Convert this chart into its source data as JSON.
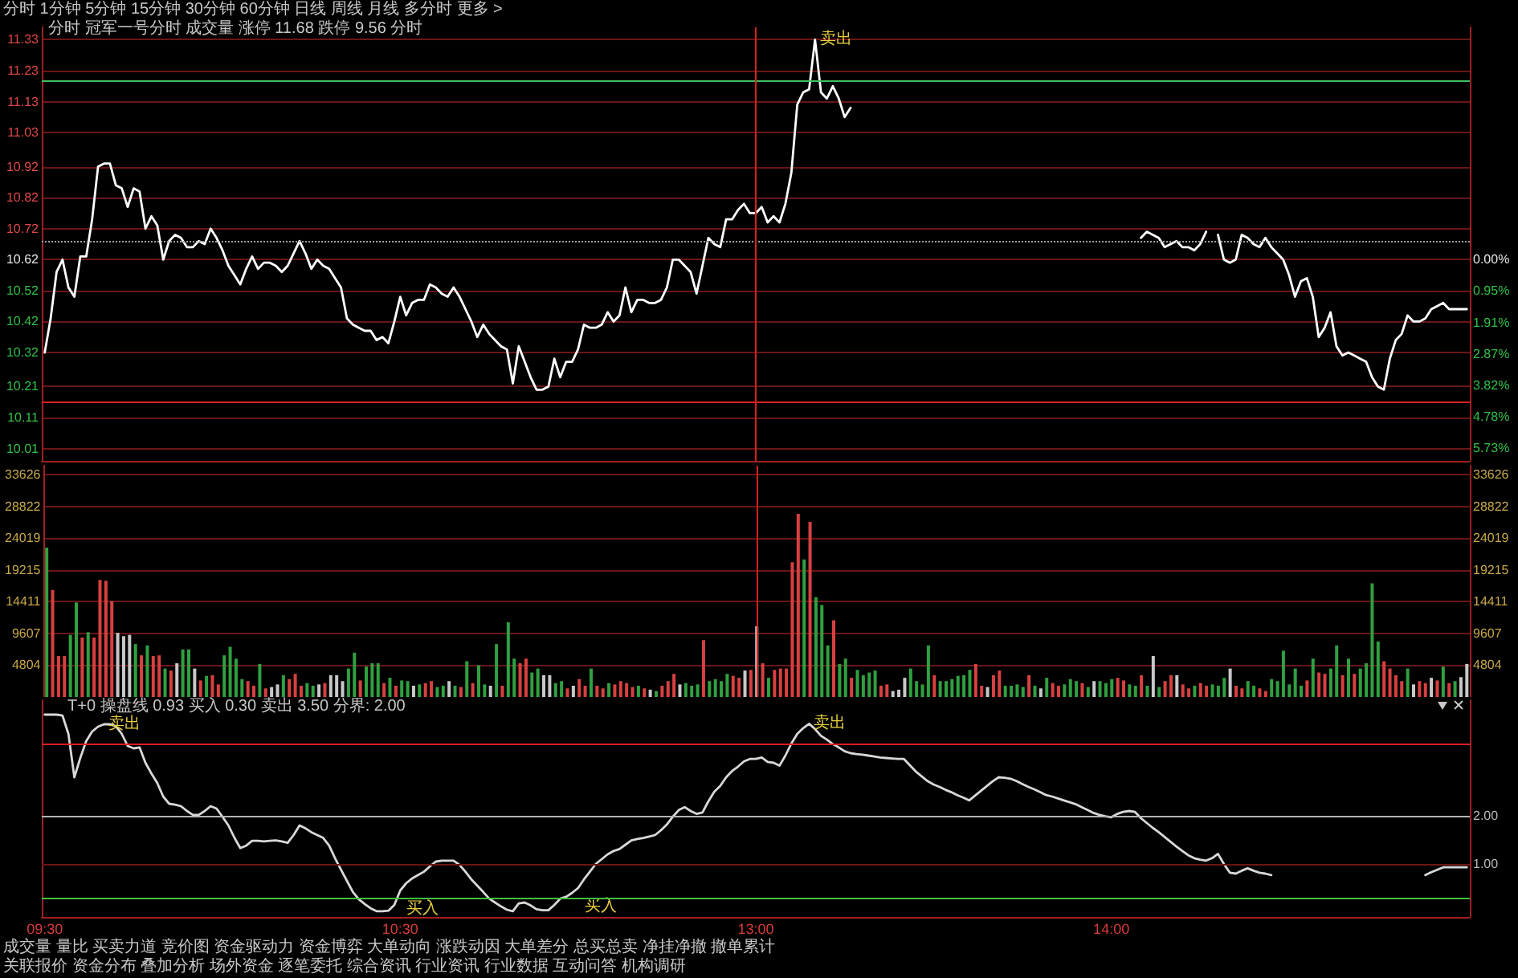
{
  "chart_data": [
    {
      "type": "line",
      "title": "分时 冠军一号分时 成交量 涨停 11.68 跌停 9.56 分时",
      "annotations": [
        "分时 1分钟 5分钟 15分钟 30分钟 60分钟 日线 周线 月线 多分时 更多 >"
      ],
      "categories": [
        "09:30",
        null,
        null,
        null,
        null,
        null,
        null,
        null,
        null,
        null,
        null,
        null,
        null,
        null,
        null,
        null,
        null,
        null,
        null,
        null,
        null,
        null,
        null,
        null,
        null,
        null,
        null,
        null,
        null,
        null,
        null,
        null,
        null,
        null,
        null,
        null,
        null,
        null,
        null,
        null,
        null,
        null,
        null,
        null,
        null,
        null,
        null,
        null,
        null,
        null,
        null,
        null,
        null,
        null,
        null,
        null,
        null,
        null,
        null,
        null,
        "10:30",
        null,
        null,
        null,
        null,
        null,
        null,
        null,
        null,
        null,
        null,
        null,
        null,
        null,
        null,
        null,
        null,
        null,
        null,
        null,
        null,
        null,
        null,
        null,
        null,
        null,
        null,
        null,
        null,
        null,
        null,
        null,
        null,
        null,
        null,
        null,
        null,
        null,
        null,
        null,
        null,
        null,
        null,
        null,
        null,
        null,
        null,
        null,
        null,
        null,
        null,
        null,
        null,
        null,
        null,
        null,
        null,
        null,
        null,
        null,
        "13:00",
        null,
        null,
        null,
        null,
        null,
        null,
        null,
        null,
        null,
        null,
        null,
        null,
        null,
        null,
        null,
        null,
        null,
        null,
        null,
        null,
        null,
        null,
        null,
        null,
        null,
        null,
        null,
        null,
        null,
        null,
        null,
        null,
        null,
        null,
        null,
        null,
        null,
        null,
        null,
        null,
        null,
        null,
        null,
        null,
        null,
        null,
        null,
        null,
        null,
        null,
        null,
        null,
        null,
        null,
        null,
        null,
        null,
        null,
        null,
        "14:00",
        null,
        null,
        null,
        null,
        null,
        null,
        null,
        null,
        null,
        null,
        null,
        null,
        null,
        null,
        null,
        null,
        null,
        null,
        null,
        null,
        null,
        null,
        null,
        null,
        null,
        null,
        null,
        null,
        null,
        null,
        null,
        null,
        null,
        null,
        null,
        null,
        null,
        null,
        null,
        null,
        null,
        null,
        null,
        null,
        null,
        null,
        null,
        null,
        null,
        null,
        null,
        null,
        null,
        null,
        null,
        null,
        null,
        null,
        null,
        null
      ],
      "series": [
        {
          "color": "#ffffff",
          "values": [
            10.32,
            10.43,
            10.58,
            10.62,
            10.53,
            10.5,
            10.63,
            10.63,
            10.75,
            10.92,
            10.93,
            10.93,
            10.86,
            10.85,
            10.79,
            10.85,
            10.84,
            10.72,
            10.76,
            10.73,
            10.62,
            10.68,
            10.7,
            10.69,
            10.66,
            10.66,
            10.68,
            10.67,
            10.72,
            10.69,
            10.65,
            10.6,
            10.57,
            10.54,
            10.59,
            10.63,
            10.59,
            10.61,
            10.61,
            10.6,
            10.58,
            10.6,
            10.64,
            10.68,
            10.64,
            10.59,
            10.62,
            10.6,
            10.59,
            10.56,
            10.53,
            10.43,
            10.41,
            10.4,
            10.39,
            10.39,
            10.36,
            10.37,
            10.35,
            10.42,
            10.5,
            10.44,
            10.48,
            10.49,
            10.49,
            10.54,
            10.53,
            10.51,
            10.5,
            10.53,
            10.5,
            10.46,
            10.42,
            10.37,
            10.41,
            10.38,
            10.36,
            10.34,
            10.33,
            10.22,
            10.34,
            10.29,
            10.24,
            10.2,
            10.2,
            10.21,
            10.3,
            10.24,
            10.29,
            10.29,
            10.33,
            10.41,
            10.4,
            10.4,
            10.41,
            10.45,
            10.42,
            10.44,
            10.53,
            10.45,
            10.49,
            10.49,
            10.48,
            10.48,
            10.49,
            10.53,
            10.62,
            10.62,
            10.6,
            10.58,
            10.51,
            10.6,
            10.69,
            10.67,
            10.66,
            10.75,
            10.75,
            10.78,
            10.8,
            10.77,
            10.77,
            10.79,
            10.74,
            10.76,
            10.74,
            10.8,
            10.9,
            11.12,
            11.16,
            11.17,
            11.33,
            11.16,
            11.14,
            11.18,
            11.14,
            11.08,
            11.11,
            null,
            null,
            null,
            null,
            null,
            null,
            null,
            null,
            null,
            null,
            null,
            null,
            null,
            null,
            null,
            null,
            null,
            null,
            null,
            null,
            null,
            null,
            null,
            null,
            null,
            null,
            null,
            null,
            null,
            null,
            null,
            null,
            null,
            null,
            null,
            null,
            null,
            null,
            null,
            null,
            null,
            null,
            null,
            null,
            null,
            null,
            null,
            null,
            10.69,
            10.71,
            10.7,
            10.69,
            10.66,
            10.67,
            10.68,
            10.66,
            10.66,
            10.65,
            10.67,
            10.71,
            null,
            10.7,
            10.62,
            10.61,
            10.62,
            10.7,
            10.69,
            10.67,
            10.66,
            10.69,
            10.66,
            10.64,
            10.62,
            10.57,
            10.5,
            10.55,
            10.56,
            10.5,
            10.37,
            10.4,
            10.45,
            10.34,
            10.31,
            10.32,
            10.31,
            10.3,
            10.29,
            10.24,
            10.21,
            10.2,
            10.3,
            10.36,
            10.38,
            10.44,
            10.42,
            10.42,
            10.43,
            10.46,
            10.47,
            10.48,
            10.46,
            10.46,
            10.46,
            10.46
          ],
          "value_labels": [
            null,
            null,
            null,
            null,
            null,
            null,
            null,
            null,
            null,
            null,
            null,
            null,
            null,
            null,
            null,
            null,
            null,
            null,
            null,
            null,
            null,
            null,
            null,
            null,
            null,
            null,
            null,
            null,
            null,
            null,
            null,
            null,
            null,
            null,
            null,
            null,
            null,
            null,
            null,
            null,
            null,
            null,
            null,
            null,
            null,
            null,
            null,
            null,
            null,
            null,
            null,
            null,
            null,
            null,
            null,
            null,
            null,
            null,
            null,
            null,
            null,
            null,
            null,
            null,
            null,
            null,
            null,
            null,
            null,
            null,
            null,
            null,
            null,
            null,
            null,
            null,
            null,
            null,
            null,
            null,
            null,
            null,
            null,
            null,
            null,
            null,
            null,
            null,
            null,
            null,
            null,
            null,
            null,
            null,
            null,
            null,
            null,
            null,
            null,
            null,
            null,
            null,
            null,
            null,
            null,
            null,
            null,
            null,
            null,
            null,
            null,
            null,
            null,
            null,
            null,
            null,
            null,
            null,
            null,
            null,
            null,
            null,
            null,
            null,
            null,
            null,
            null,
            null,
            null,
            null,
            "卖出",
            null,
            null,
            null,
            null,
            null,
            null,
            null,
            null,
            null,
            null,
            null,
            null,
            null,
            null,
            null,
            null,
            null,
            null,
            null,
            null,
            null,
            null,
            null,
            null,
            null,
            null,
            null,
            null,
            null,
            null,
            null,
            null,
            null,
            null,
            null,
            null,
            null,
            null,
            null,
            null,
            null,
            null,
            null,
            null,
            null,
            null,
            null,
            null,
            null,
            null,
            null,
            null,
            null,
            null,
            null,
            null,
            null,
            null,
            null,
            null,
            null,
            null,
            null,
            null,
            null,
            null,
            null,
            null,
            null,
            null,
            null,
            null,
            null,
            null,
            null,
            null,
            null,
            null,
            null,
            null,
            null,
            null,
            null,
            null,
            null,
            null,
            null,
            null,
            null,
            null,
            null,
            null,
            null,
            null,
            null,
            null,
            null,
            null,
            null,
            null,
            null,
            null,
            null,
            null,
            null,
            null,
            null,
            null,
            null,
            null
          ]
        }
      ],
      "ylim": [
        9.97,
        11.37
      ],
      "yticks": [
        10.01,
        10.11,
        10.21,
        10.32,
        10.42,
        10.52,
        10.62,
        10.72,
        10.82,
        10.92,
        11.03,
        11.13,
        11.23,
        11.33
      ],
      "y2lim": [
        -6.12,
        7.06
      ],
      "y2ticks": [
        {
          "value": 0,
          "label": "0.00%"
        },
        {
          "value": -0.95,
          "label": "0.95%"
        },
        {
          "value": -1.91,
          "label": "1.91%"
        },
        {
          "value": -2.87,
          "label": "2.87%"
        },
        {
          "value": -3.82,
          "label": "3.82%"
        },
        {
          "value": -4.78,
          "label": "4.78%"
        },
        {
          "value": -5.73,
          "label": "5.73%"
        }
      ],
      "ref_lines": [
        {
          "axis": "y",
          "value": 11.2,
          "color": "#40c060"
        },
        {
          "axis": "y",
          "value": 10.68,
          "color": "#a0a0a0",
          "line_style": "dotted"
        },
        {
          "axis": "y",
          "value": 10.16,
          "color": "#d82020"
        },
        {
          "axis": "x",
          "value": "13:00",
          "color": "#d82020"
        }
      ],
      "grid": "y",
      "tick_labels": "y"
    },
    {
      "type": "bar",
      "categories": [
        "09:30",
        null,
        null,
        null,
        null,
        null,
        null,
        null,
        null,
        null,
        null,
        null,
        null,
        null,
        null,
        null,
        null,
        null,
        null,
        null,
        null,
        null,
        null,
        null,
        null,
        null,
        null,
        null,
        null,
        null,
        null,
        null,
        null,
        null,
        null,
        null,
        null,
        null,
        null,
        null,
        null,
        null,
        null,
        null,
        null,
        null,
        null,
        null,
        null,
        null,
        null,
        null,
        null,
        null,
        null,
        null,
        null,
        null,
        null,
        null,
        "10:30",
        null,
        null,
        null,
        null,
        null,
        null,
        null,
        null,
        null,
        null,
        null,
        null,
        null,
        null,
        null,
        null,
        null,
        null,
        null,
        null,
        null,
        null,
        null,
        null,
        null,
        null,
        null,
        null,
        null,
        null,
        null,
        null,
        null,
        null,
        null,
        null,
        null,
        null,
        null,
        null,
        null,
        null,
        null,
        null,
        null,
        null,
        null,
        null,
        null,
        null,
        null,
        null,
        null,
        null,
        null,
        null,
        null,
        null,
        null,
        "13:00",
        null,
        null,
        null,
        null,
        null,
        null,
        null,
        null,
        null,
        null,
        null,
        null,
        null,
        null,
        null,
        null,
        null,
        null,
        null,
        null,
        null,
        null,
        null,
        null,
        null,
        null,
        null,
        null,
        null,
        null,
        null,
        null,
        null,
        null,
        null,
        null,
        null,
        null,
        null,
        null,
        null,
        null,
        null,
        null,
        null,
        null,
        null,
        null,
        null,
        null,
        null,
        null,
        null,
        null,
        null,
        null,
        null,
        null,
        null,
        "14:00",
        null,
        null,
        null,
        null,
        null,
        null,
        null,
        null,
        null,
        null,
        null,
        null,
        null,
        null,
        null,
        null,
        null,
        null,
        null,
        null,
        null,
        null,
        null,
        null,
        null,
        null,
        null,
        null,
        null,
        null,
        null,
        null,
        null,
        null,
        null,
        null,
        null,
        null,
        null,
        null,
        null,
        null,
        null,
        null,
        null,
        null,
        null,
        null,
        null,
        null,
        null,
        null,
        null,
        null,
        null,
        null,
        null,
        null,
        null,
        null
      ],
      "values": [
        22600,
        16200,
        6200,
        6200,
        9400,
        14300,
        9000,
        9800,
        9000,
        17700,
        17600,
        14500,
        9700,
        9200,
        9400,
        8000,
        6300,
        7800,
        6200,
        6300,
        4300,
        4000,
        5100,
        7200,
        7200,
        4300,
        2500,
        3200,
        3300,
        1900,
        6300,
        7600,
        5800,
        2700,
        2400,
        1700,
        5000,
        1300,
        1500,
        1900,
        3300,
        2700,
        3500,
        1700,
        2100,
        1700,
        1900,
        2100,
        3300,
        3300,
        2400,
        4300,
        6700,
        2500,
        4600,
        5100,
        5100,
        2100,
        2900,
        1700,
        2500,
        2400,
        1700,
        1900,
        2100,
        2400,
        1500,
        1700,
        2400,
        1700,
        1500,
        5400,
        2100,
        4800,
        1900,
        1700,
        8000,
        1700,
        11300,
        5800,
        5100,
        5800,
        3700,
        4300,
        3300,
        3300,
        2100,
        2400,
        1300,
        1700,
        2700,
        1700,
        4300,
        1700,
        1300,
        2100,
        1900,
        2400,
        2100,
        1500,
        1700,
        1300,
        1100,
        900,
        1700,
        2400,
        3500,
        1900,
        2100,
        1700,
        1900,
        8600,
        2400,
        2700,
        2400,
        3500,
        3200,
        2900,
        4000,
        4100,
        10700,
        5100,
        2900,
        4100,
        4300,
        4300,
        20400,
        27700,
        20800,
        26500,
        15100,
        13900,
        7800,
        11600,
        5000,
        5800,
        2900,
        4100,
        3300,
        3700,
        4000,
        1700,
        1900,
        900,
        1100,
        2900,
        4300,
        2400,
        1900,
        7800,
        3300,
        2400,
        2400,
        2700,
        3200,
        3300,
        4100,
        5000,
        1700,
        1500,
        3300,
        4000,
        1700,
        1700,
        1900,
        1500,
        3300,
        1700,
        1300,
        2900,
        2100,
        1700,
        1900,
        2700,
        2400,
        2100,
        1500,
        2400,
        2400,
        2100,
        2700,
        2900,
        2500,
        1900,
        1700,
        3300,
        1700,
        6200,
        1500,
        2400,
        3300,
        3300,
        1900,
        1300,
        1700,
        2100,
        1700,
        1900,
        1700,
        2900,
        4300,
        1700,
        1300,
        2400,
        1700,
        1300,
        900,
        2700,
        2400,
        7000,
        1900,
        4300,
        1700,
        2500,
        5800,
        3700,
        3500,
        4300,
        7800,
        3300,
        5800,
        3500,
        4300,
        5100,
        17200,
        8400,
        5400,
        4300,
        3300,
        2400,
        4300,
        1900,
        2400,
        2100,
        2900,
        2500,
        4600,
        2100,
        2400,
        3000,
        5000
      ],
      "colors": [
        "#30a040",
        "#d84040",
        "#d84040",
        "#d84040",
        "#30a040",
        "#30a040",
        "#d84040",
        "#30a040",
        "#d84040",
        "#d84040",
        "#d84040",
        "#d84040",
        "#c8c8c8",
        "#c8c8c8",
        "#c8c8c8",
        "#30a040",
        "#d84040",
        "#30a040",
        "#d84040",
        "#d84040",
        "#30a040",
        "#d84040",
        "#c8c8c8",
        "#30a040",
        "#30a040",
        "#c8c8c8",
        "#d84040",
        "#30a040",
        "#d84040",
        "#d84040",
        "#30a040",
        "#30a040",
        "#30a040",
        "#30a040",
        "#d84040",
        "#d84040",
        "#30a040",
        "#d84040",
        "#c8c8c8",
        "#c8c8c8",
        "#30a040",
        "#d84040",
        "#d84040",
        "#d84040",
        "#30a040",
        "#30a040",
        "#c8c8c8",
        "#d84040",
        "#c8c8c8",
        "#c8c8c8",
        "#c8c8c8",
        "#30a040",
        "#30a040",
        "#d84040",
        "#30a040",
        "#30a040",
        "#30a040",
        "#d84040",
        "#30a040",
        "#d84040",
        "#30a040",
        "#30a040",
        "#c8c8c8",
        "#30a040",
        "#d84040",
        "#d84040",
        "#30a040",
        "#30a040",
        "#c8c8c8",
        "#30a040",
        "#d84040",
        "#30a040",
        "#d84040",
        "#30a040",
        "#30a040",
        "#c8c8c8",
        "#30a040",
        "#d84040",
        "#30a040",
        "#30a040",
        "#d84040",
        "#d84040",
        "#30a040",
        "#30a040",
        "#c8c8c8",
        "#c8c8c8",
        "#30a040",
        "#30a040",
        "#d84040",
        "#c8c8c8",
        "#d84040",
        "#d84040",
        "#30a040",
        "#d84040",
        "#d84040",
        "#30a040",
        "#d84040",
        "#d84040",
        "#d84040",
        "#d84040",
        "#30a040",
        "#d84040",
        "#c8c8c8",
        "#30a040",
        "#d84040",
        "#d84040",
        "#d84040",
        "#c8c8c8",
        "#30a040",
        "#30a040",
        "#30a040",
        "#d84040",
        "#30a040",
        "#30a040",
        "#30a040",
        "#30a040",
        "#d84040",
        "#d84040",
        "#c8c8c8",
        "#d84040",
        "#c8c8c8",
        "#d84040",
        "#30a040",
        "#d84040",
        "#d84040",
        "#d84040",
        "#d84040",
        "#d84040",
        "#30a040",
        "#d84040",
        "#30a040",
        "#30a040",
        "#30a040",
        "#d84040",
        "#30a040",
        "#30a040",
        "#d84040",
        "#30a040",
        "#30a040",
        "#30a040",
        "#30a040",
        "#d84040",
        "#d84040",
        "#c8c8c8",
        "#c8c8c8",
        "#c8c8c8",
        "#30a040",
        "#30a040",
        "#30a040",
        "#30a040",
        "#d84040",
        "#30a040",
        "#30a040",
        "#30a040",
        "#30a040",
        "#30a040",
        "#30a040",
        "#d84040",
        "#d84040",
        "#c8c8c8",
        "#d84040",
        "#d84040",
        "#30a040",
        "#30a040",
        "#30a040",
        "#30a040",
        "#d84040",
        "#30a040",
        "#c8c8c8",
        "#30a040",
        "#d84040",
        "#d84040",
        "#30a040",
        "#30a040",
        "#30a040",
        "#d84040",
        "#30a040",
        "#c8c8c8",
        "#30a040",
        "#30a040",
        "#30a040",
        "#d84040",
        "#d84040",
        "#30a040",
        "#30a040",
        "#d84040",
        "#30a040",
        "#c8c8c8",
        "#30a040",
        "#d84040",
        "#d84040",
        "#c8c8c8",
        "#d84040",
        "#d84040",
        "#30a040",
        "#d84040",
        "#d84040",
        "#30a040",
        "#30a040",
        "#30a040",
        "#c8c8c8",
        "#d84040",
        "#d84040",
        "#30a040",
        "#30a040",
        "#d84040",
        "#d84040",
        "#30a040",
        "#30a040",
        "#30a040",
        "#30a040",
        "#30a040",
        "#30a040",
        "#d84040",
        "#30a040",
        "#d84040",
        "#d84040",
        "#30a040",
        "#30a040",
        "#d84040",
        "#30a040",
        "#d84040",
        "#30a040",
        "#30a040",
        "#30a040",
        "#30a040",
        "#d84040",
        "#d84040",
        "#d84040",
        "#d84040",
        "#30a040",
        "#c8c8c8",
        "#d84040",
        "#d84040",
        "#c8c8c8",
        "#d84040",
        "#30a040",
        "#d84040",
        "#30a040",
        "#c8c8c8",
        "#c8c8c8"
      ],
      "ylim": [
        0,
        35000
      ],
      "yticks": [
        4804,
        9607,
        14411,
        19215,
        24019,
        28822,
        33626
      ],
      "y2lim": [
        0,
        35000
      ],
      "y2ticks": [
        4804,
        9607,
        14411,
        19215,
        24019,
        28822,
        33626
      ],
      "ref_lines": [
        {
          "axis": "x",
          "value": "13:00",
          "color": "#d82020"
        }
      ],
      "grid": "y",
      "tick_labels": "y"
    },
    {
      "type": "line",
      "title": "T+0 操盘线 0.93 买入 0.30 卖出 3.50 分界: 2.00",
      "annotations": [
        "成交量 量比 买卖力道 竞价图 资金驱动力 资金博弈 大单动向 涨跌动因 大单差分 总买总卖 净挂净撤 撤单累计",
        "关联报价 资金分布 叠加分析 场外资金 逐笔委托 综合资讯 行业资讯 行业数据 互动问答 机构调研"
      ],
      "categories": [
        "09:30",
        null,
        null,
        null,
        null,
        null,
        null,
        null,
        null,
        null,
        null,
        null,
        null,
        null,
        null,
        null,
        null,
        null,
        null,
        null,
        null,
        null,
        null,
        null,
        null,
        null,
        null,
        null,
        null,
        null,
        null,
        null,
        null,
        null,
        null,
        null,
        null,
        null,
        null,
        null,
        null,
        null,
        null,
        null,
        null,
        null,
        null,
        null,
        null,
        null,
        null,
        null,
        null,
        null,
        null,
        null,
        null,
        null,
        null,
        null,
        "10:30",
        null,
        null,
        null,
        null,
        null,
        null,
        null,
        null,
        null,
        null,
        null,
        null,
        null,
        null,
        null,
        null,
        null,
        null,
        null,
        null,
        null,
        null,
        null,
        null,
        null,
        null,
        null,
        null,
        null,
        null,
        null,
        null,
        null,
        null,
        null,
        null,
        null,
        null,
        null,
        null,
        null,
        null,
        null,
        null,
        null,
        null,
        null,
        null,
        null,
        null,
        null,
        null,
        null,
        null,
        null,
        null,
        null,
        null,
        null,
        "13:00",
        null,
        null,
        null,
        null,
        null,
        null,
        null,
        null,
        null,
        null,
        null,
        null,
        null,
        null,
        null,
        null,
        null,
        null,
        null,
        null,
        null,
        null,
        null,
        null,
        null,
        null,
        null,
        null,
        null,
        null,
        null,
        null,
        null,
        null,
        null,
        null,
        null,
        null,
        null,
        null,
        null,
        null,
        null,
        null,
        null,
        null,
        null,
        null,
        null,
        null,
        null,
        null,
        null,
        null,
        null,
        null,
        null,
        null,
        null,
        "14:00",
        null,
        null,
        null,
        null,
        null,
        null,
        null,
        null,
        null,
        null,
        null,
        null,
        null,
        null,
        null,
        null,
        null,
        null,
        null,
        null,
        null,
        null,
        null,
        null,
        null,
        null,
        null,
        null,
        null,
        null,
        null,
        null,
        null,
        null,
        null,
        null,
        null,
        null,
        null,
        null,
        null,
        null,
        null,
        null,
        null,
        null,
        null,
        null,
        null,
        null,
        null,
        null,
        null,
        null,
        null,
        null,
        null,
        null,
        null,
        null
      ],
      "series": [
        {
          "color": "#d8d8d8",
          "axis": "y2",
          "values": [
            4.1,
            4.1,
            4.1,
            4.08,
            3.7,
            2.8,
            3.2,
            3.55,
            3.75,
            3.85,
            3.9,
            3.9,
            3.86,
            3.7,
            3.45,
            3.4,
            3.42,
            3.1,
            2.88,
            2.68,
            2.4,
            2.25,
            2.23,
            2.2,
            2.1,
            2.02,
            2.02,
            2.1,
            2.2,
            2.15,
            1.98,
            1.8,
            1.55,
            1.33,
            1.38,
            1.48,
            1.48,
            1.47,
            1.48,
            1.49,
            1.47,
            1.44,
            1.6,
            1.8,
            1.74,
            1.66,
            1.6,
            1.54,
            1.38,
            1.12,
            0.88,
            0.65,
            0.42,
            0.27,
            0.17,
            0.08,
            0.02,
            0.02,
            0.03,
            0.15,
            0.45,
            0.6,
            0.7,
            0.77,
            0.84,
            0.95,
            1.05,
            1.07,
            1.07,
            1.07,
            0.98,
            0.84,
            0.68,
            0.55,
            0.42,
            0.28,
            0.2,
            0.12,
            0.05,
            0.02,
            0.18,
            0.2,
            0.14,
            0.06,
            0.04,
            0.04,
            0.15,
            0.28,
            0.32,
            0.4,
            0.5,
            0.68,
            0.84,
            1.0,
            1.1,
            1.2,
            1.27,
            1.31,
            1.4,
            1.49,
            1.52,
            1.54,
            1.57,
            1.6,
            1.7,
            1.82,
            1.98,
            2.12,
            2.18,
            2.1,
            2.04,
            2.07,
            2.3,
            2.5,
            2.62,
            2.8,
            2.93,
            3.02,
            3.13,
            3.18,
            3.18,
            3.21,
            3.12,
            3.1,
            3.04,
            3.25,
            3.5,
            3.7,
            3.82,
            3.91,
            3.8,
            3.66,
            3.58,
            3.49,
            3.42,
            3.34,
            3.3,
            3.28,
            3.27,
            3.25,
            3.23,
            3.21,
            3.2,
            3.19,
            3.18,
            3.18,
            3.05,
            2.92,
            2.82,
            2.72,
            2.65,
            2.6,
            2.54,
            2.49,
            2.43,
            2.38,
            2.32,
            2.42,
            2.52,
            2.62,
            2.72,
            2.8,
            2.79,
            2.77,
            2.72,
            2.66,
            2.6,
            2.55,
            2.49,
            2.43,
            2.4,
            2.36,
            2.32,
            2.28,
            2.24,
            2.18,
            2.12,
            2.06,
            2.02,
            1.99,
            1.97,
            2.04,
            2.08,
            2.1,
            2.08,
            1.95,
            1.85,
            1.75,
            1.66,
            1.56,
            1.46,
            1.36,
            1.27,
            1.18,
            1.12,
            1.09,
            1.07,
            1.12,
            1.21,
            1.0,
            0.82,
            0.8,
            0.86,
            0.91,
            0.86,
            0.82,
            0.8,
            0.77,
            null,
            null,
            null,
            null,
            null,
            null,
            null,
            null,
            null,
            null,
            null,
            null,
            null,
            null,
            null,
            null,
            null,
            null,
            null,
            null,
            null,
            null,
            null,
            null,
            null,
            0.77,
            0.83,
            0.88,
            0.93,
            0.93,
            0.93,
            0.93,
            0.93
          ],
          "value_labels": [
            null,
            null,
            null,
            null,
            null,
            null,
            null,
            null,
            null,
            null,
            "卖出",
            null,
            null,
            null,
            null,
            null,
            null,
            null,
            null,
            null,
            null,
            null,
            null,
            null,
            null,
            null,
            null,
            null,
            null,
            null,
            null,
            null,
            null,
            null,
            null,
            null,
            null,
            null,
            null,
            null,
            null,
            null,
            null,
            null,
            null,
            null,
            null,
            null,
            null,
            null,
            null,
            null,
            null,
            null,
            null,
            null,
            null,
            null,
            null,
            null,
            "买入",
            null,
            null,
            null,
            null,
            null,
            null,
            null,
            null,
            null,
            null,
            null,
            null,
            null,
            null,
            null,
            null,
            null,
            null,
            null,
            null,
            null,
            null,
            null,
            null,
            null,
            null,
            null,
            null,
            null,
            "买入",
            null,
            null,
            null,
            null,
            null,
            null,
            null,
            null,
            null,
            null,
            null,
            null,
            null,
            null,
            null,
            null,
            null,
            null,
            null,
            null,
            null,
            null,
            null,
            null,
            null,
            null,
            null,
            null,
            null,
            null,
            null,
            null,
            null,
            null,
            null,
            null,
            null,
            null,
            "卖出",
            null,
            null,
            null,
            null,
            null,
            null,
            null,
            null,
            null,
            null,
            null,
            null,
            null,
            null,
            null,
            null,
            null,
            null,
            null,
            null,
            null,
            null,
            null,
            null,
            null,
            null,
            null,
            null,
            null,
            null,
            null,
            null,
            null,
            null,
            null,
            null,
            null,
            null,
            null,
            null,
            null,
            null,
            null,
            null,
            null,
            null,
            null,
            null,
            null,
            null,
            null,
            null,
            null,
            null,
            null,
            null,
            null,
            null,
            null,
            null,
            null,
            null,
            null,
            null,
            null,
            null,
            null,
            null,
            null,
            null,
            null,
            null,
            null,
            null,
            null,
            null,
            null,
            null,
            null,
            null,
            null,
            null,
            null,
            null,
            null,
            null,
            null,
            null,
            null,
            null,
            null,
            null,
            null,
            null,
            null,
            null,
            null,
            null,
            null,
            null,
            null,
            null,
            null,
            null,
            null,
            null,
            null,
            null,
            null,
            null,
            null
          ]
        }
      ],
      "y2lim": [
        -0.1,
        4.4
      ],
      "y2ticks": [
        {
          "value": 1,
          "label": "1.00"
        },
        {
          "value": 2,
          "label": "2.00"
        }
      ],
      "ref_lines": [
        {
          "axis": "y2",
          "value": 3.5,
          "color": "#d82020"
        },
        {
          "axis": "y2",
          "value": 2,
          "color": "#b4b4b4"
        },
        {
          "axis": "y2",
          "value": 1,
          "color": "#6a1616"
        },
        {
          "axis": "y2",
          "value": 0.3,
          "color": "#40c040"
        }
      ]
    }
  ]
}
